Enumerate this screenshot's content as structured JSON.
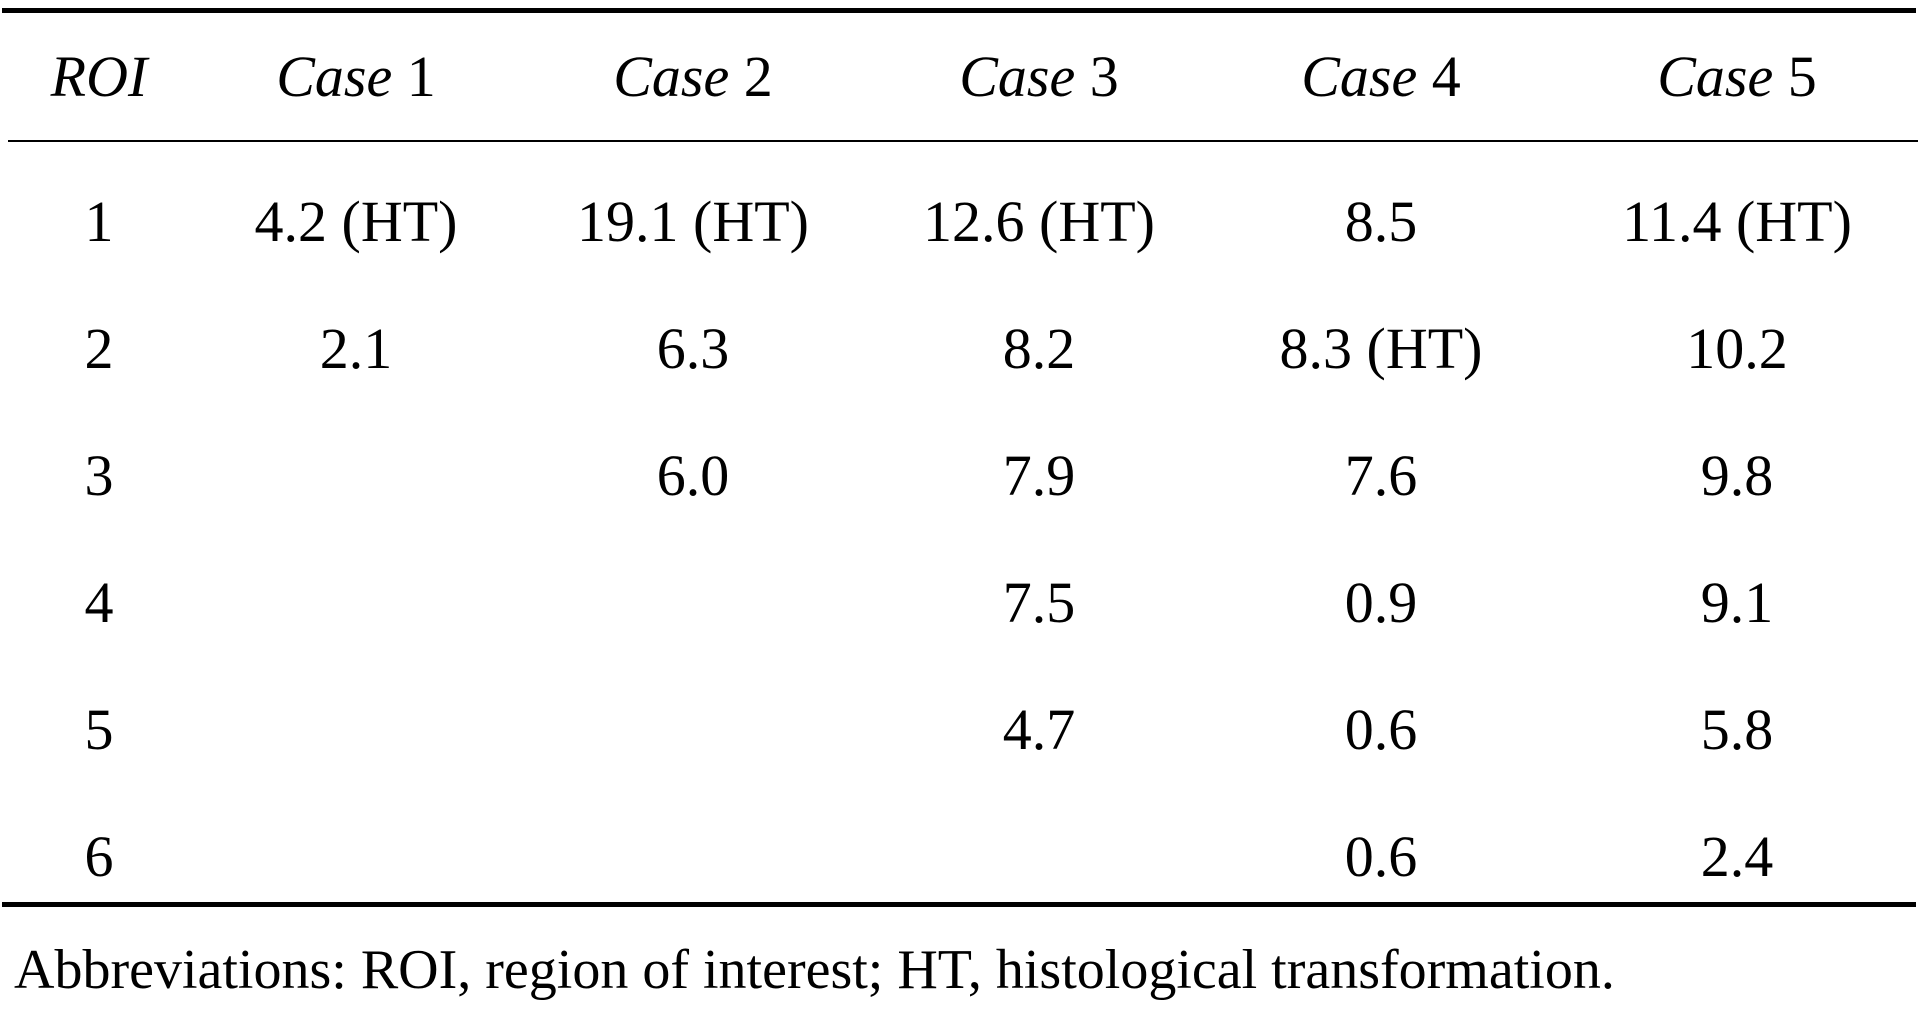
{
  "table": {
    "columns": [
      {
        "word": "",
        "num": "ROI"
      },
      {
        "word": "Case",
        "num": "1"
      },
      {
        "word": "Case",
        "num": "2"
      },
      {
        "word": "Case",
        "num": "3"
      },
      {
        "word": "Case",
        "num": "4"
      },
      {
        "word": "Case",
        "num": "5"
      }
    ],
    "rows": [
      {
        "roi": "1",
        "cells": [
          {
            "text": "4.2 (HT)",
            "bold": true
          },
          {
            "text": "19.1 (HT)",
            "bold": true
          },
          {
            "text": "12.6 (HT)",
            "bold": true
          },
          {
            "text": "8.5",
            "bold": false
          },
          {
            "text": "11.4 (HT)",
            "bold": true
          }
        ]
      },
      {
        "roi": "2",
        "cells": [
          {
            "text": "2.1",
            "bold": false
          },
          {
            "text": "6.3",
            "bold": false
          },
          {
            "text": "8.2",
            "bold": false
          },
          {
            "text": "8.3 (HT)",
            "bold": true
          },
          {
            "text": "10.2",
            "bold": false
          }
        ]
      },
      {
        "roi": "3",
        "cells": [
          {
            "text": "",
            "bold": false
          },
          {
            "text": "6.0",
            "bold": false
          },
          {
            "text": "7.9",
            "bold": false
          },
          {
            "text": "7.6",
            "bold": false
          },
          {
            "text": "9.8",
            "bold": false
          }
        ]
      },
      {
        "roi": "4",
        "cells": [
          {
            "text": "",
            "bold": false
          },
          {
            "text": "",
            "bold": false
          },
          {
            "text": "7.5",
            "bold": false
          },
          {
            "text": "0.9",
            "bold": false
          },
          {
            "text": "9.1",
            "bold": false
          }
        ]
      },
      {
        "roi": "5",
        "cells": [
          {
            "text": "",
            "bold": false
          },
          {
            "text": "",
            "bold": false
          },
          {
            "text": "4.7",
            "bold": false
          },
          {
            "text": "0.6",
            "bold": false
          },
          {
            "text": "5.8",
            "bold": false
          }
        ]
      },
      {
        "roi": "6",
        "cells": [
          {
            "text": "",
            "bold": false
          },
          {
            "text": "",
            "bold": false
          },
          {
            "text": "",
            "bold": false
          },
          {
            "text": "0.6",
            "bold": false
          },
          {
            "text": "2.4",
            "bold": false
          }
        ]
      }
    ]
  },
  "footnote": "Abbreviations: ROI, region of interest; HT, histological transformation."
}
